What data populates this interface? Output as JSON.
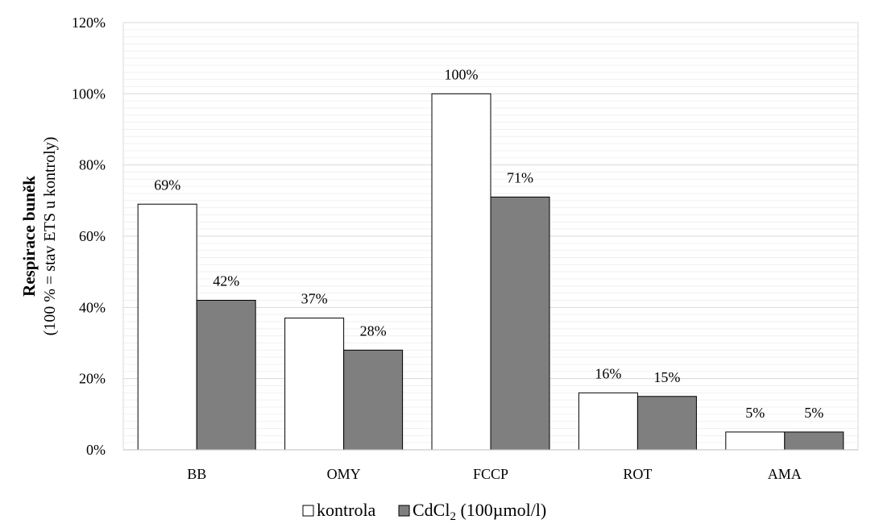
{
  "chart_data": {
    "type": "bar",
    "categories": [
      "BB",
      "OMY",
      "FCCP",
      "ROT",
      "AMA"
    ],
    "series": [
      {
        "name": "kontrola",
        "values": [
          69,
          37,
          100,
          16,
          5
        ],
        "labels": [
          "69%",
          "37%",
          "100%",
          "16%",
          "5%"
        ],
        "color": "#ffffff"
      },
      {
        "name": "CdCl2 (100µmol/l)",
        "values": [
          42,
          28,
          71,
          15,
          5
        ],
        "labels": [
          "42%",
          "28%",
          "71%",
          "15%",
          "5%"
        ],
        "color": "#7f7f7f"
      }
    ],
    "ylim": [
      0,
      120
    ],
    "ytick_values": [
      0,
      20,
      40,
      60,
      80,
      100,
      120
    ],
    "ytick_labels": [
      "0%",
      "20%",
      "40%",
      "60%",
      "80%",
      "100%",
      "120%"
    ],
    "ylabel": "Respirace buněk",
    "ylabel_sub": "(100 % = stav ETS u kontroly)",
    "xlabel": "",
    "grid": true,
    "legend_position": "bottom",
    "legend": {
      "kontrola": "kontrola",
      "cdcl2_prefix": "CdCl",
      "cdcl2_subscript": "2",
      "cdcl2_suffix": " (100µmol/l)"
    }
  }
}
